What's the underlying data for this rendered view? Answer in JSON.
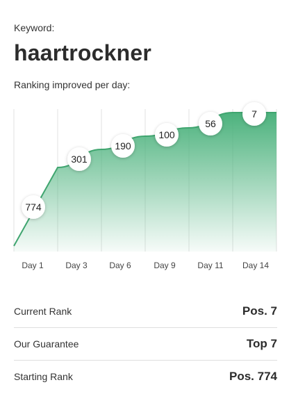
{
  "header": {
    "keyword_label": "Keyword:",
    "keyword": "haartrockner",
    "subtitle": "Ranking improved per day:"
  },
  "chart_data": {
    "type": "area",
    "title": "",
    "xlabel": "",
    "ylabel": "",
    "categories": [
      "Day 1",
      "Day 3",
      "Day 6",
      "Day 9",
      "Day 11",
      "Day 14"
    ],
    "values": [
      774,
      301,
      190,
      100,
      56,
      7
    ],
    "fill_color": "#4cb27d",
    "line_color": "#3fa56f",
    "grid": true
  },
  "stats": [
    {
      "label": "Current Rank",
      "value": "Pos. 7"
    },
    {
      "label": "Our Guarantee",
      "value": "Top 7"
    },
    {
      "label": "Starting Rank",
      "value": "Pos. 774"
    }
  ]
}
